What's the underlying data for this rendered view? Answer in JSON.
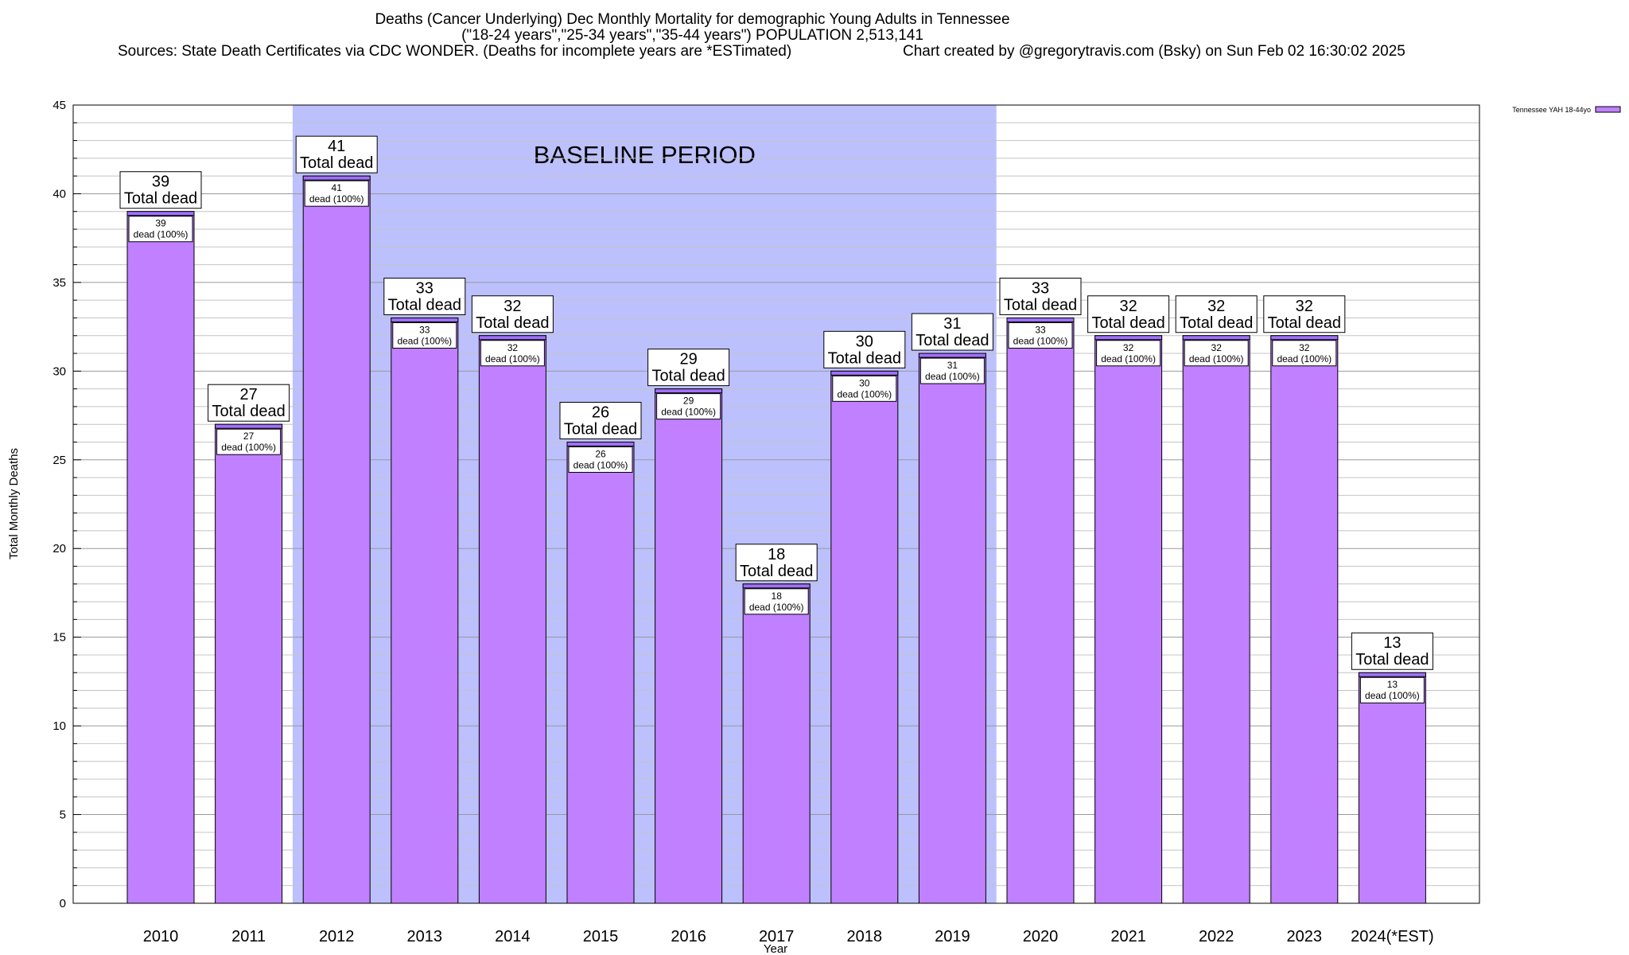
{
  "title": {
    "line1": "Deaths (Cancer Underlying) Dec Monthly Mortality for demographic Young Adults in Tennessee",
    "line2": "(\"18-24 years\",\"25-34 years\",\"35-44 years\") POPULATION 2,513,141",
    "sources": "Sources: State Death Certificates via CDC WONDER. (Deaths for incomplete years are *ESTimated)",
    "credit": "Chart created by @gregorytravis.com (Bsky) on Sun Feb 02 16:30:02 2025"
  },
  "chart_data": {
    "type": "bar",
    "categories": [
      "2010",
      "2011",
      "2012",
      "2013",
      "2014",
      "2015",
      "2016",
      "2017",
      "2018",
      "2019",
      "2020",
      "2021",
      "2022",
      "2023",
      "2024(*EST)"
    ],
    "series": [
      {
        "name": "Tennessee YAH 18-44yo",
        "values": [
          39,
          27,
          41,
          33,
          32,
          26,
          29,
          18,
          30,
          31,
          33,
          32,
          32,
          32,
          13
        ],
        "color": "#c080ff",
        "top_color": "#a070ff"
      }
    ],
    "xlabel": "Year",
    "ylabel": "Total Monthly Deaths",
    "ylim": [
      0,
      45
    ],
    "yticks": [
      0,
      5,
      10,
      15,
      20,
      25,
      30,
      35,
      40,
      45
    ],
    "grid": true,
    "legend": "top-right",
    "total_label_suffix": "Total dead",
    "inner_label_suffix": "dead (100%)",
    "baseline": {
      "label": "BASELINE PERIOD",
      "from": "2012",
      "to": "2019",
      "color": "#bcc0fc"
    }
  }
}
